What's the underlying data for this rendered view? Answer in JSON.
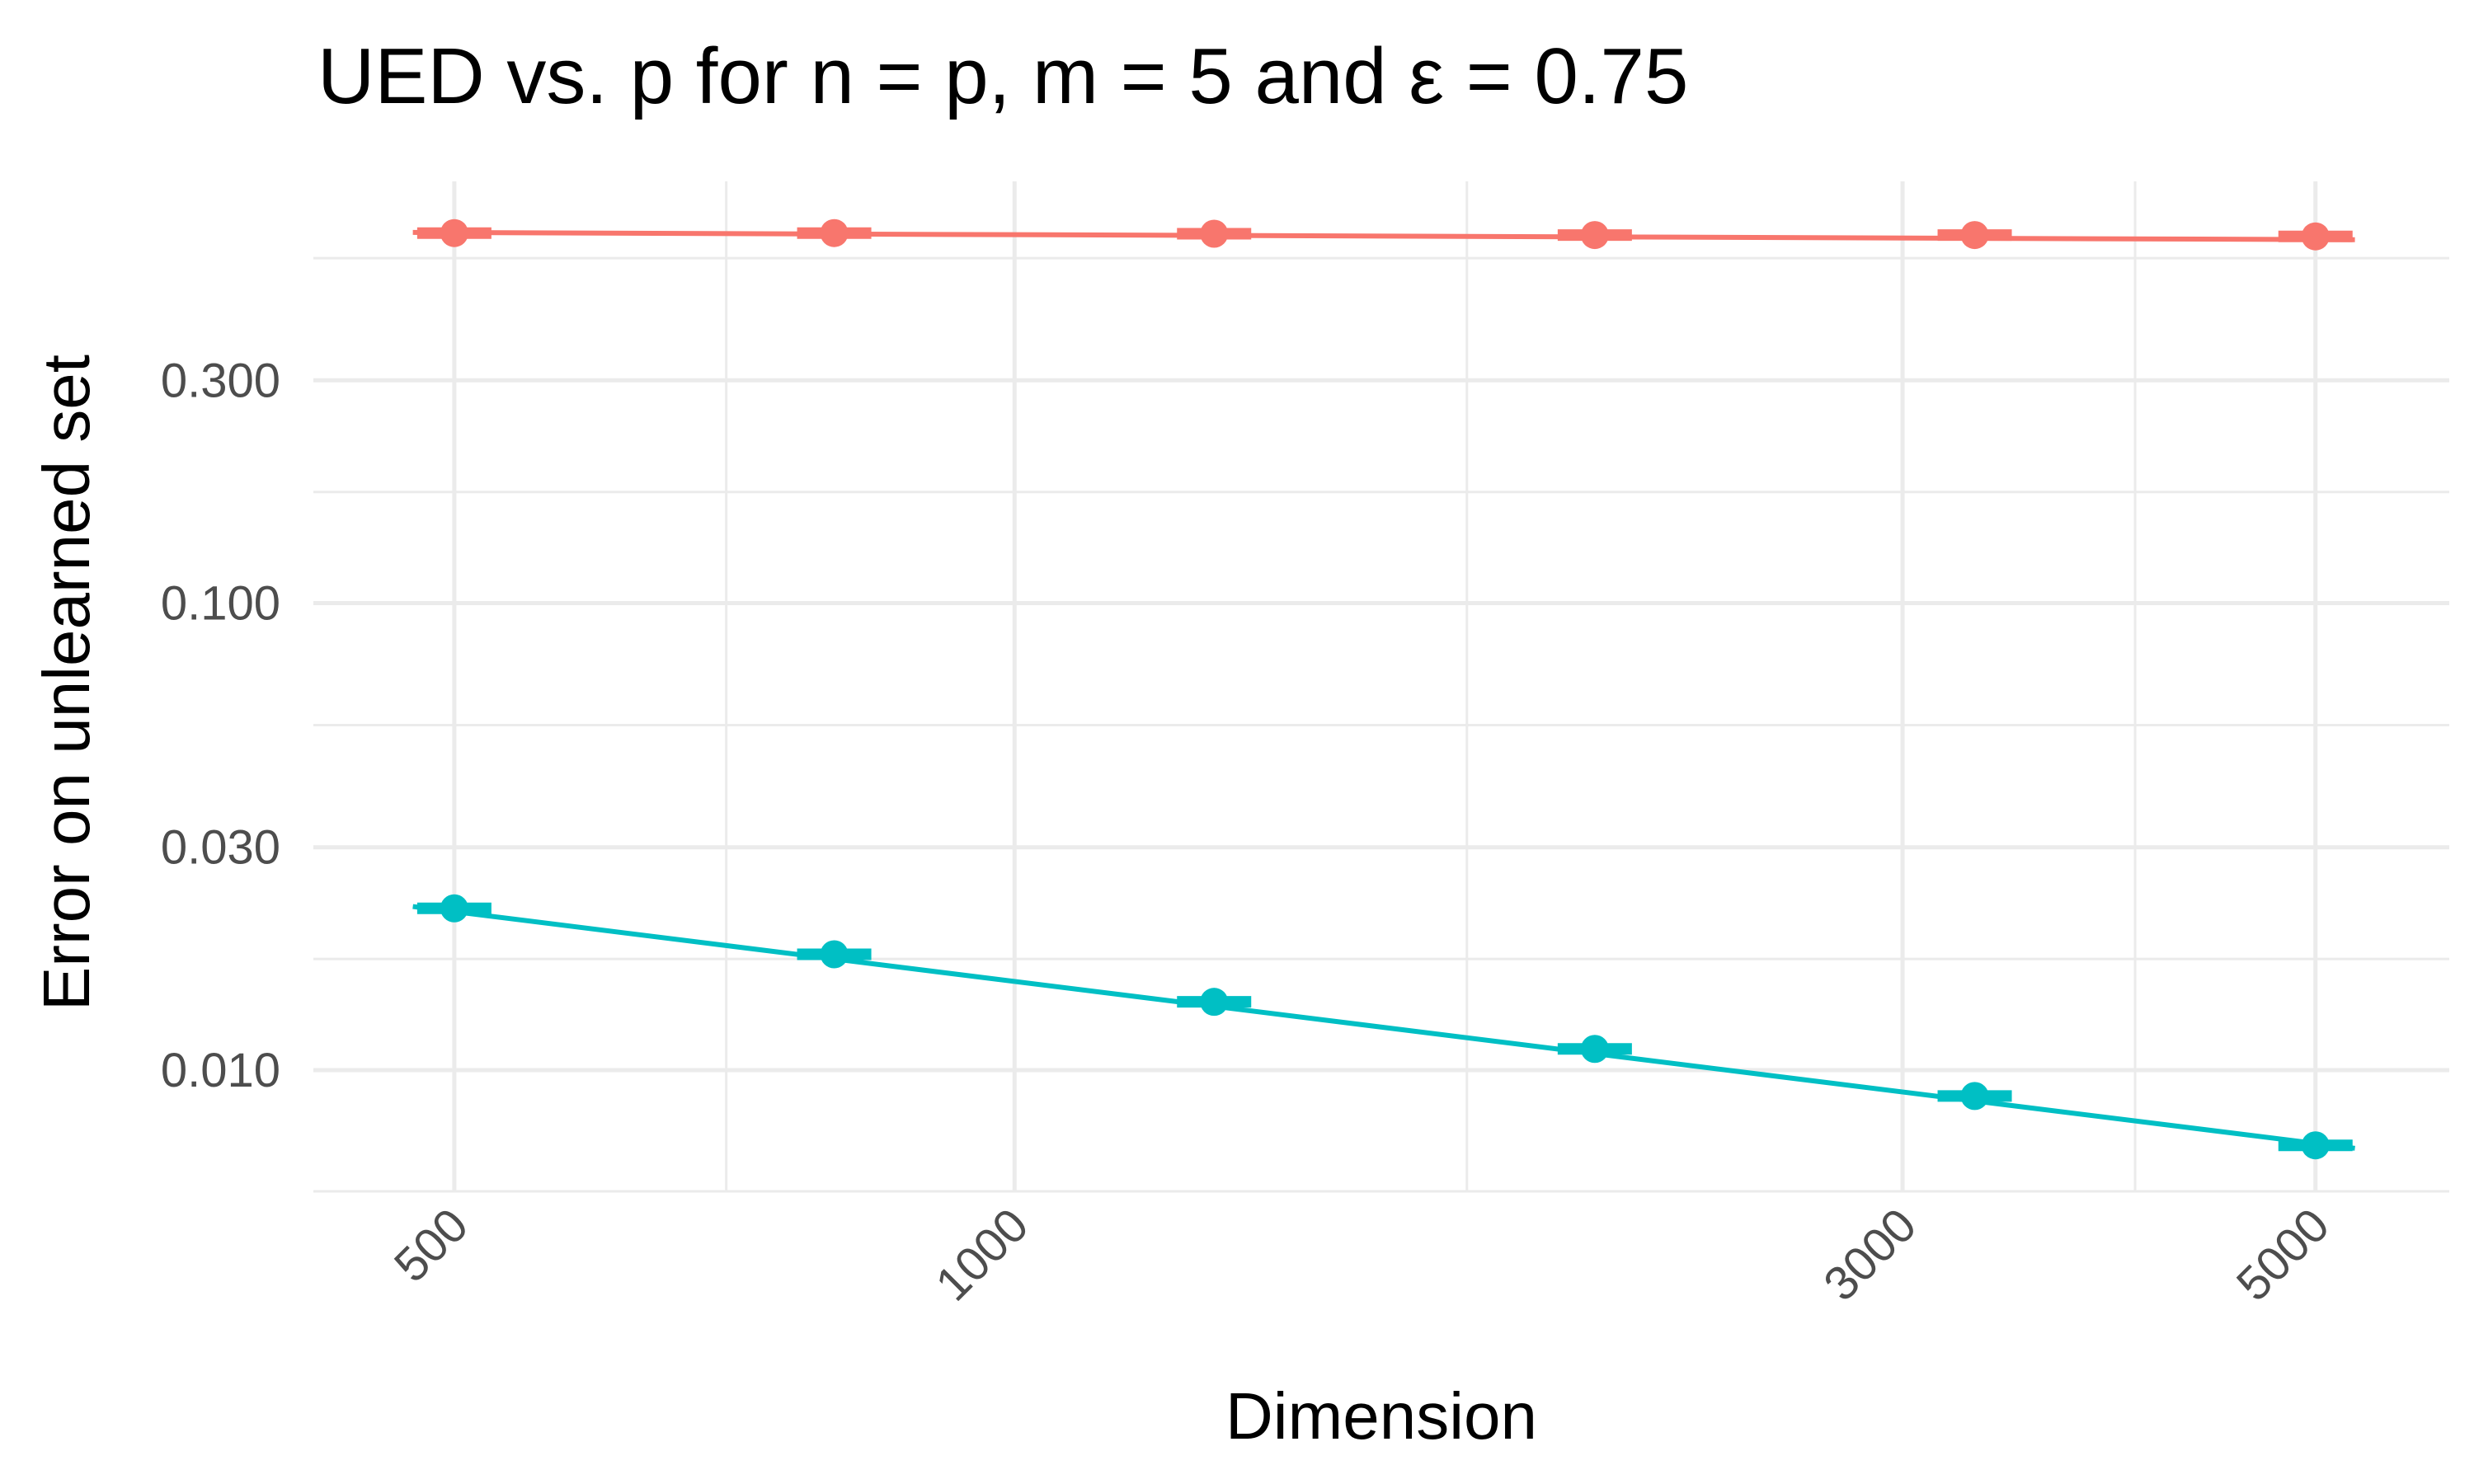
{
  "chart_data": {
    "type": "line",
    "title": "UED vs. p for n = p, m = 5 and  ε =  0.75",
    "xlabel": "Dimension",
    "ylabel": "Error on unlearned set",
    "x_scale": "log",
    "y_scale": "log",
    "x_ticks": [
      {
        "value": 500,
        "label": "500"
      },
      {
        "value": 1000,
        "label": "1000"
      },
      {
        "value": 3000,
        "label": "3000"
      },
      {
        "value": 5000,
        "label": "5000"
      }
    ],
    "x_minor_ticks": [
      700,
      1750,
      4000
    ],
    "y_ticks": [
      {
        "value": 0.01,
        "label": "0.010"
      },
      {
        "value": 0.03,
        "label": "0.030"
      },
      {
        "value": 0.1,
        "label": "0.100"
      },
      {
        "value": 0.3,
        "label": "0.300"
      }
    ],
    "y_minor_ticks": [
      0.0055,
      0.0173,
      0.0548,
      0.173,
      0.548
    ],
    "xlim": [
      420,
      5900
    ],
    "ylim": [
      0.0055,
      0.8
    ],
    "grid": true,
    "legend": "none",
    "x": [
      500,
      800,
      1280,
      2050,
      3280,
      5000
    ],
    "series": [
      {
        "color": "#F8766D",
        "values": [
          0.62,
          0.62,
          0.618,
          0.614,
          0.614,
          0.61
        ],
        "fit": [
          0.622,
          0.6
        ]
      },
      {
        "color": "#00BFC4",
        "values": [
          0.0222,
          0.0177,
          0.014,
          0.0111,
          0.0088,
          0.0069
        ],
        "fit": [
          0.0224,
          0.0068
        ]
      }
    ]
  }
}
